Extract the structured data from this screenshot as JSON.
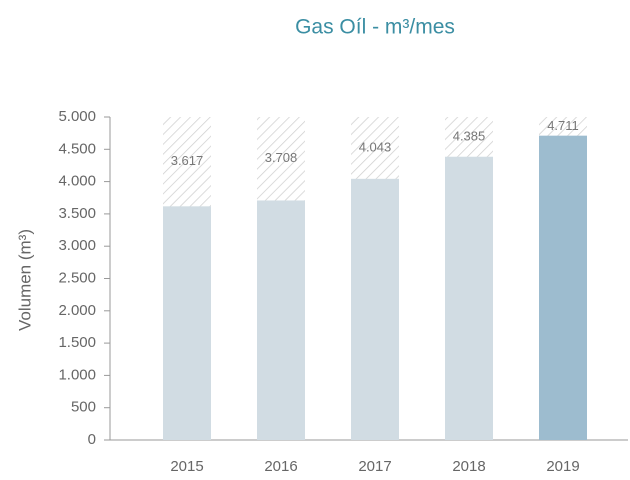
{
  "chart_data": {
    "type": "bar",
    "title": "Gas Oíl - m³/mes",
    "y_label": "Volumen (m³)",
    "categories": [
      "2015",
      "2016",
      "2017",
      "2018",
      "2019"
    ],
    "values": [
      3617,
      3708,
      4043,
      4385,
      4711
    ],
    "value_labels": [
      "3.617",
      "3.708",
      "4.043",
      "4.385",
      "4.711"
    ],
    "colors": [
      "#d1dce3",
      "#d1dce3",
      "#d1dce3",
      "#d1dce3",
      "#9dbccf"
    ],
    "ylim": [
      0,
      5000
    ],
    "yticks": [
      0,
      500,
      {
        "value": 1000,
        "label": "1.000"
      },
      {
        "value": 1500,
        "label": "1.500"
      },
      {
        "value": 2000,
        "label": "2.000"
      },
      {
        "value": 2500,
        "label": "2.500"
      },
      {
        "value": 3000,
        "label": "3.000"
      },
      {
        "value": 3500,
        "label": "3.500"
      },
      {
        "value": 4000,
        "label": "4.000"
      },
      {
        "value": 4500,
        "label": "4.500"
      },
      {
        "value": 5000,
        "label": "5.000"
      }
    ]
  }
}
